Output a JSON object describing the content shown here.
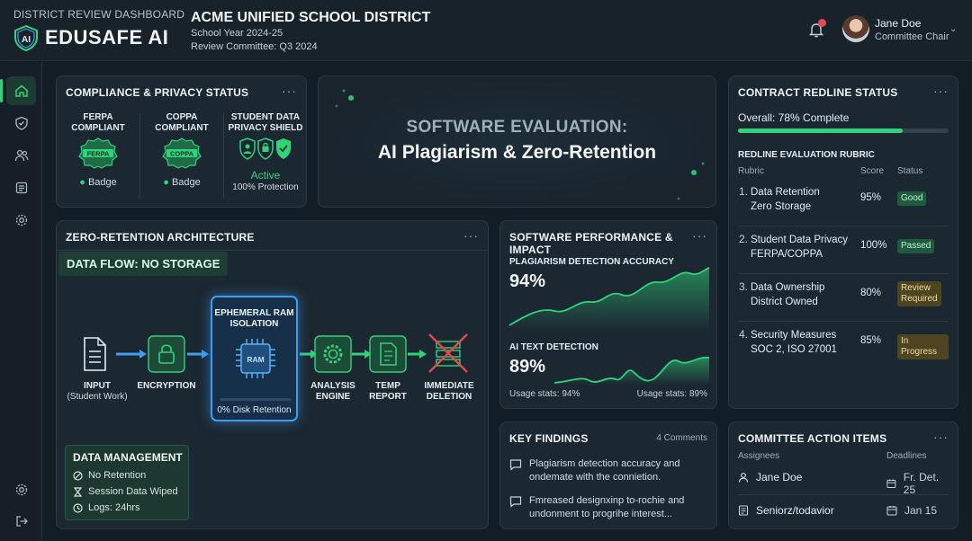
{
  "header": {
    "dashboard_label": "DISTRICT REVIEW DASHBOARD",
    "brand": "EDUSAFE AI",
    "logo_text": "AI",
    "district": "ACME UNIFIED SCHOOL DISTRICT",
    "school_year": "School Year 2024-25",
    "committee": "Review Committee: Q3 2024",
    "user_name": "Jane Doe",
    "user_role": "Committee Chair"
  },
  "sidebar": {
    "items": [
      {
        "icon": "home-icon",
        "active": true
      },
      {
        "icon": "shield-icon",
        "active": false
      },
      {
        "icon": "users-icon",
        "active": false
      },
      {
        "icon": "document-icon",
        "active": false
      },
      {
        "icon": "gear-icon",
        "active": false
      }
    ],
    "bottom": [
      {
        "icon": "settings-icon"
      },
      {
        "icon": "logout-icon"
      }
    ]
  },
  "compliance": {
    "title": "COMPLIANCE & PRIVACY STATUS",
    "ferpa": {
      "heading_1": "FERPA",
      "heading_2": "COMPLIANT",
      "seal": "FERPA",
      "badge": "Badge"
    },
    "coppa": {
      "heading_1": "COPPA",
      "heading_2": "COMPLIANT",
      "seal": "COPPA",
      "badge": "Badge"
    },
    "shield": {
      "heading_1": "STUDENT DATA",
      "heading_2": "PRIVACY SHIELD",
      "status": "Active",
      "protection": "100% Protection"
    }
  },
  "hero": {
    "subtitle": "SOFTWARE EVALUATION:",
    "title": "AI Plagiarism & Zero-Retention"
  },
  "architecture": {
    "title": "ZERO-RETENTION ARCHITECTURE",
    "tag": "DATA FLOW: NO STORAGE",
    "input_label": "INPUT",
    "input_sub": "(Student Work)",
    "encryption": "ENCRYPTION",
    "ram_title_1": "EPHEMERAL RAM",
    "ram_title_2": "ISOLATION",
    "ram_chip": "RAM",
    "retention": "0% Disk Retention",
    "analysis_1": "ANALYSIS",
    "analysis_2": "ENGINE",
    "temp_1": "TEMP",
    "temp_2": "REPORT",
    "deletion_1": "IMMEDIATE",
    "deletion_2": "DELETION",
    "data_management": {
      "title": "DATA MANAGEMENT",
      "no_retention": "No Retention",
      "session": "Session Data Wiped",
      "logs": "Logs: 24hrs"
    }
  },
  "performance": {
    "title": "SOFTWARE PERFORMANCE & IMPACT",
    "plagiarism_label": "PLAGIARISM DETECTION ACCURACY",
    "plagiarism_value": "94%",
    "ai_label": "AI TEXT DETECTION",
    "ai_value": "89%",
    "usage_left": "Usage stats: 94%",
    "usage_right": "Usage stats: 89%"
  },
  "findings": {
    "title": "KEY FINDINGS",
    "count": "4 Comments",
    "items": [
      "Plagiarism detection accuracy and ondemate with the connietion.",
      "Fmreased designxinp to-rochie and undonment to progrihe interest..."
    ]
  },
  "contract": {
    "title": "CONTRACT REDLINE STATUS",
    "progress_text": "Overall: 78% Complete",
    "progress": 0.78,
    "rubric_title": "REDLINE EVALUATION RUBRIC",
    "columns": {
      "rubric": "Rubric",
      "score": "Score",
      "status": "Status"
    },
    "rows": [
      {
        "num": "1.",
        "name_1": "Data Retention",
        "name_2": "Zero Storage",
        "score": "95%",
        "status_1": "Good",
        "status_2": ""
      },
      {
        "num": "2.",
        "name_1": "Student Data Privacy",
        "name_2": "FERPA/COPPA",
        "score": "100%",
        "status_1": "Passed",
        "status_2": ""
      },
      {
        "num": "3.",
        "name_1": "Data Ownership",
        "name_2": "District Owned",
        "score": "80%",
        "status_1": "Review",
        "status_2": "Required"
      },
      {
        "num": "4.",
        "name_1": "Security Measures",
        "name_2": "SOC 2, ISO 27001",
        "score": "85%",
        "status_1": "In Progress",
        "status_2": ""
      }
    ]
  },
  "actions": {
    "title": "COMMITTEE ACTION ITEMS",
    "col_assignees": "Assignees",
    "col_deadlines": "Deadlines",
    "rows": [
      {
        "name": "Jane Doe",
        "date": "Fr. Det. 25"
      },
      {
        "name": "Seniorz/todavior",
        "date": "Jan 15"
      }
    ]
  },
  "colors": {
    "accent_green": "#2fd37a",
    "accent_blue": "#3f9cf1",
    "background": "#131d25",
    "card": "#1b2731"
  }
}
